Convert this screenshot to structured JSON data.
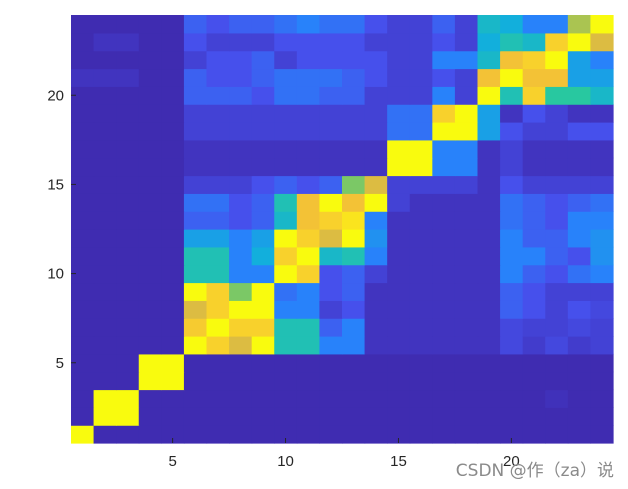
{
  "chart_data": {
    "type": "heatmap",
    "title": "",
    "xlabel": "",
    "ylabel": "",
    "xlim": [
      0.5,
      24.5
    ],
    "ylim": [
      0.5,
      24.5
    ],
    "xticks": [
      5,
      10,
      15,
      20
    ],
    "yticks": [
      5,
      10,
      15,
      20
    ],
    "xtick_labels": [
      "5",
      "10",
      "15",
      "20"
    ],
    "ytick_labels": [
      "5",
      "10",
      "15",
      "20"
    ],
    "colormap": "parula",
    "clim": [
      0,
      1
    ],
    "grid": false,
    "legend": "none",
    "row_order": "bottom-to-top",
    "values": [
      [
        1.0,
        0.02,
        0.02,
        0.02,
        0.02,
        0.02,
        0.02,
        0.02,
        0.02,
        0.02,
        0.02,
        0.02,
        0.02,
        0.02,
        0.02,
        0.02,
        0.02,
        0.02,
        0.02,
        0.02,
        0.02,
        0.02,
        0.02,
        0.02
      ],
      [
        0.02,
        1.0,
        1.0,
        0.02,
        0.02,
        0.02,
        0.02,
        0.02,
        0.02,
        0.02,
        0.02,
        0.02,
        0.02,
        0.02,
        0.02,
        0.02,
        0.02,
        0.02,
        0.02,
        0.02,
        0.02,
        0.02,
        0.02,
        0.02
      ],
      [
        0.02,
        1.0,
        1.0,
        0.02,
        0.02,
        0.02,
        0.02,
        0.02,
        0.02,
        0.02,
        0.02,
        0.02,
        0.02,
        0.02,
        0.02,
        0.02,
        0.02,
        0.02,
        0.02,
        0.02,
        0.02,
        0.04,
        0.02,
        0.02
      ],
      [
        0.02,
        0.02,
        0.02,
        1.0,
        1.0,
        0.02,
        0.02,
        0.02,
        0.02,
        0.02,
        0.02,
        0.02,
        0.02,
        0.02,
        0.02,
        0.02,
        0.02,
        0.02,
        0.02,
        0.02,
        0.02,
        0.02,
        0.02,
        0.02
      ],
      [
        0.02,
        0.02,
        0.02,
        1.0,
        1.0,
        0.02,
        0.02,
        0.02,
        0.02,
        0.02,
        0.02,
        0.02,
        0.02,
        0.02,
        0.02,
        0.02,
        0.02,
        0.02,
        0.02,
        0.02,
        0.02,
        0.02,
        0.02,
        0.02
      ],
      [
        0.02,
        0.02,
        0.02,
        0.02,
        0.02,
        1.0,
        0.9,
        0.8,
        1.0,
        0.55,
        0.55,
        0.3,
        0.3,
        0.05,
        0.05,
        0.05,
        0.05,
        0.05,
        0.05,
        0.12,
        0.08,
        0.12,
        0.08,
        0.1
      ],
      [
        0.02,
        0.02,
        0.02,
        0.02,
        0.02,
        0.88,
        1.0,
        0.9,
        0.9,
        0.55,
        0.55,
        0.2,
        0.3,
        0.05,
        0.05,
        0.05,
        0.05,
        0.05,
        0.05,
        0.12,
        0.1,
        0.1,
        0.12,
        0.1
      ],
      [
        0.02,
        0.02,
        0.02,
        0.02,
        0.02,
        0.8,
        0.9,
        1.0,
        1.0,
        0.3,
        0.3,
        0.1,
        0.15,
        0.05,
        0.05,
        0.05,
        0.05,
        0.05,
        0.05,
        0.2,
        0.15,
        0.1,
        0.15,
        0.12
      ],
      [
        0.02,
        0.02,
        0.02,
        0.02,
        0.02,
        1.0,
        0.9,
        0.7,
        1.0,
        0.25,
        0.3,
        0.15,
        0.2,
        0.05,
        0.05,
        0.05,
        0.05,
        0.05,
        0.05,
        0.2,
        0.15,
        0.1,
        0.1,
        0.1
      ],
      [
        0.02,
        0.02,
        0.02,
        0.02,
        0.02,
        0.55,
        0.55,
        0.3,
        0.3,
        1.0,
        0.9,
        0.15,
        0.2,
        0.1,
        0.05,
        0.05,
        0.05,
        0.05,
        0.05,
        0.3,
        0.2,
        0.15,
        0.25,
        0.3
      ],
      [
        0.02,
        0.02,
        0.02,
        0.02,
        0.02,
        0.55,
        0.55,
        0.3,
        0.45,
        0.9,
        1.0,
        0.5,
        0.55,
        0.3,
        0.05,
        0.05,
        0.05,
        0.05,
        0.05,
        0.3,
        0.3,
        0.2,
        0.15,
        0.35
      ],
      [
        0.02,
        0.02,
        0.02,
        0.02,
        0.02,
        0.4,
        0.4,
        0.3,
        0.4,
        1.0,
        0.9,
        0.8,
        1.0,
        0.35,
        0.05,
        0.05,
        0.05,
        0.05,
        0.05,
        0.3,
        0.2,
        0.2,
        0.3,
        0.35
      ],
      [
        0.02,
        0.02,
        0.02,
        0.02,
        0.02,
        0.2,
        0.2,
        0.15,
        0.2,
        0.5,
        0.85,
        0.9,
        0.95,
        0.3,
        0.05,
        0.05,
        0.05,
        0.05,
        0.05,
        0.25,
        0.2,
        0.15,
        0.3,
        0.3
      ],
      [
        0.02,
        0.02,
        0.02,
        0.02,
        0.02,
        0.25,
        0.25,
        0.15,
        0.2,
        0.55,
        0.85,
        1.0,
        0.85,
        1.0,
        0.1,
        0.05,
        0.05,
        0.05,
        0.05,
        0.25,
        0.2,
        0.15,
        0.2,
        0.25
      ],
      [
        0.02,
        0.02,
        0.02,
        0.02,
        0.02,
        0.1,
        0.1,
        0.1,
        0.15,
        0.2,
        0.15,
        0.2,
        0.7,
        0.8,
        0.1,
        0.1,
        0.1,
        0.1,
        0.05,
        0.15,
        0.1,
        0.1,
        0.1,
        0.1
      ],
      [
        0.02,
        0.02,
        0.02,
        0.02,
        0.02,
        0.05,
        0.05,
        0.05,
        0.05,
        0.05,
        0.05,
        0.05,
        0.05,
        0.05,
        1.0,
        1.0,
        0.3,
        0.3,
        0.05,
        0.1,
        0.05,
        0.05,
        0.05,
        0.05
      ],
      [
        0.02,
        0.02,
        0.02,
        0.02,
        0.02,
        0.05,
        0.05,
        0.05,
        0.05,
        0.05,
        0.05,
        0.05,
        0.05,
        0.05,
        1.0,
        1.0,
        0.3,
        0.3,
        0.05,
        0.1,
        0.05,
        0.05,
        0.05,
        0.05
      ],
      [
        0.02,
        0.02,
        0.02,
        0.02,
        0.02,
        0.1,
        0.1,
        0.1,
        0.1,
        0.1,
        0.1,
        0.1,
        0.1,
        0.1,
        0.25,
        0.25,
        1.0,
        1.0,
        0.4,
        0.15,
        0.1,
        0.1,
        0.15,
        0.15
      ],
      [
        0.02,
        0.02,
        0.02,
        0.02,
        0.02,
        0.1,
        0.1,
        0.1,
        0.1,
        0.1,
        0.1,
        0.1,
        0.1,
        0.1,
        0.25,
        0.25,
        0.9,
        1.0,
        0.4,
        0.05,
        0.15,
        0.1,
        0.05,
        0.05
      ],
      [
        0.02,
        0.02,
        0.02,
        0.02,
        0.02,
        0.2,
        0.2,
        0.2,
        0.15,
        0.25,
        0.25,
        0.2,
        0.2,
        0.1,
        0.1,
        0.1,
        0.3,
        0.1,
        1.0,
        0.55,
        0.9,
        0.6,
        0.6,
        0.5
      ],
      [
        0.05,
        0.05,
        0.05,
        0.02,
        0.02,
        0.2,
        0.15,
        0.15,
        0.2,
        0.25,
        0.25,
        0.25,
        0.2,
        0.15,
        0.1,
        0.1,
        0.15,
        0.1,
        0.85,
        1.0,
        0.85,
        0.85,
        0.4,
        0.4
      ],
      [
        0.02,
        0.02,
        0.02,
        0.02,
        0.02,
        0.1,
        0.15,
        0.15,
        0.2,
        0.1,
        0.15,
        0.15,
        0.15,
        0.15,
        0.1,
        0.1,
        0.3,
        0.3,
        0.5,
        0.85,
        0.9,
        1.0,
        0.4,
        0.3
      ],
      [
        0.02,
        0.05,
        0.05,
        0.02,
        0.02,
        0.15,
        0.1,
        0.1,
        0.1,
        0.15,
        0.15,
        0.15,
        0.15,
        0.1,
        0.1,
        0.1,
        0.15,
        0.1,
        0.45,
        0.55,
        0.5,
        0.9,
        1.0,
        0.8
      ],
      [
        0.02,
        0.02,
        0.02,
        0.02,
        0.02,
        0.2,
        0.15,
        0.2,
        0.2,
        0.25,
        0.3,
        0.25,
        0.25,
        0.15,
        0.1,
        0.1,
        0.2,
        0.1,
        0.5,
        0.45,
        0.3,
        0.3,
        0.75,
        1.0
      ]
    ]
  },
  "watermark": "CSDN @作（za）说"
}
